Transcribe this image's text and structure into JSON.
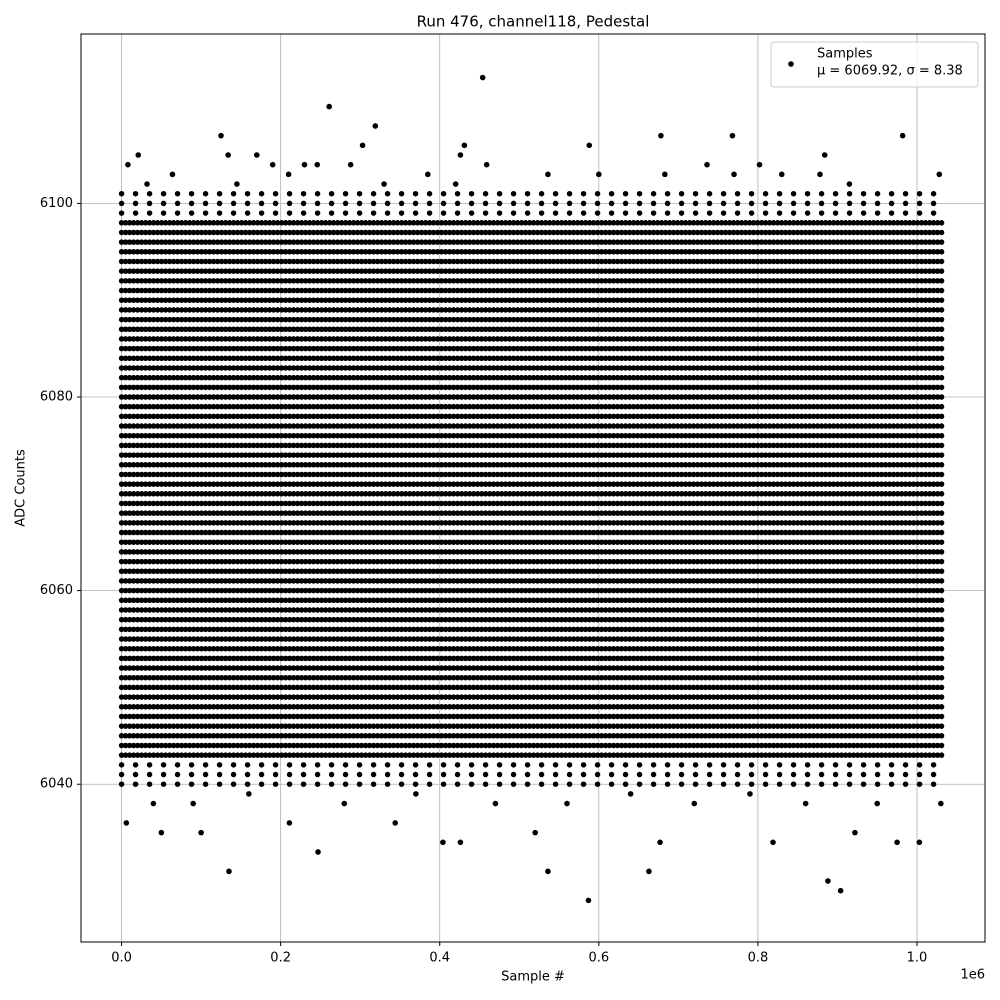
{
  "chart_data": {
    "type": "scatter",
    "title": "Run 476, channel118, Pedestal",
    "xlabel": "Sample #",
    "ylabel": "ADC Counts",
    "x_offset_label": "1e6",
    "xlim": [
      -51000,
      1085500
    ],
    "ylim": [
      6023.7,
      6117.5
    ],
    "xticks": [
      {
        "value": 0,
        "label": "0.0"
      },
      {
        "value": 200000,
        "label": "0.2"
      },
      {
        "value": 400000,
        "label": "0.4"
      },
      {
        "value": 600000,
        "label": "0.6"
      },
      {
        "value": 800000,
        "label": "0.8"
      },
      {
        "value": 1000000,
        "label": "1.0"
      }
    ],
    "yticks": [
      6040,
      6060,
      6080,
      6100
    ],
    "grid": true,
    "legend": "upper right",
    "legend_stats": "μ = 6069.92, σ = 8.38",
    "series": [
      {
        "name": "Samples",
        "color": "#000000",
        "x": [
          261000,
          454000,
          319000,
          125000,
          678000,
          768000,
          982000,
          431000,
          303000,
          588000,
          884000,
          21000,
          134000,
          170000,
          426000,
          8000,
          190000,
          230000,
          246000,
          288000,
          459000,
          736000,
          802000,
          135000,
          247000,
          536000,
          663000,
          587000,
          888000,
          904000,
          404000,
          426000,
          6000,
          50000,
          100000,
          211000,
          344000,
          520000,
          677000,
          819000,
          975000,
          1003000,
          922000,
          32000,
          64000,
          145000,
          210000,
          330000,
          385000,
          420000,
          536000,
          600000,
          683000,
          770000,
          830000,
          878000,
          915000,
          1028000,
          40000,
          90000,
          160000,
          280000,
          370000,
          470000,
          560000,
          640000,
          720000,
          790000,
          860000,
          950000,
          1030000
        ],
        "y": [
          6110,
          6113,
          6108,
          6107,
          6107,
          6107,
          6107,
          6106,
          6106,
          6106,
          6105,
          6105,
          6105,
          6105,
          6105,
          6104,
          6104,
          6104,
          6104,
          6104,
          6104,
          6104,
          6104,
          6031,
          6033,
          6031,
          6031,
          6028,
          6030,
          6029,
          6034,
          6034,
          6036,
          6035,
          6035,
          6036,
          6036,
          6035,
          6034,
          6034,
          6034,
          6034,
          6035,
          6102,
          6103,
          6102,
          6103,
          6102,
          6103,
          6102,
          6103,
          6103,
          6103,
          6103,
          6103,
          6103,
          6102,
          6103,
          6038,
          6038,
          6039,
          6038,
          6039,
          6038,
          6038,
          6039,
          6038,
          6039,
          6038,
          6038,
          6038
        ]
      }
    ],
    "levels_x": [
      0,
      1035000
    ],
    "levels": [
      6040,
      6041,
      6042,
      6043,
      6044,
      6045,
      6046,
      6047,
      6048,
      6049,
      6050,
      6051,
      6052,
      6053,
      6054,
      6055,
      6056,
      6057,
      6058,
      6059,
      6060,
      6061,
      6062,
      6063,
      6064,
      6065,
      6066,
      6067,
      6068,
      6069,
      6070,
      6071,
      6072,
      6073,
      6074,
      6075,
      6076,
      6077,
      6078,
      6079,
      6080,
      6081,
      6082,
      6083,
      6084,
      6085,
      6086,
      6087,
      6088,
      6089,
      6090,
      6091,
      6092,
      6093,
      6094,
      6095,
      6096,
      6097,
      6098,
      6099,
      6100,
      6101
    ]
  }
}
